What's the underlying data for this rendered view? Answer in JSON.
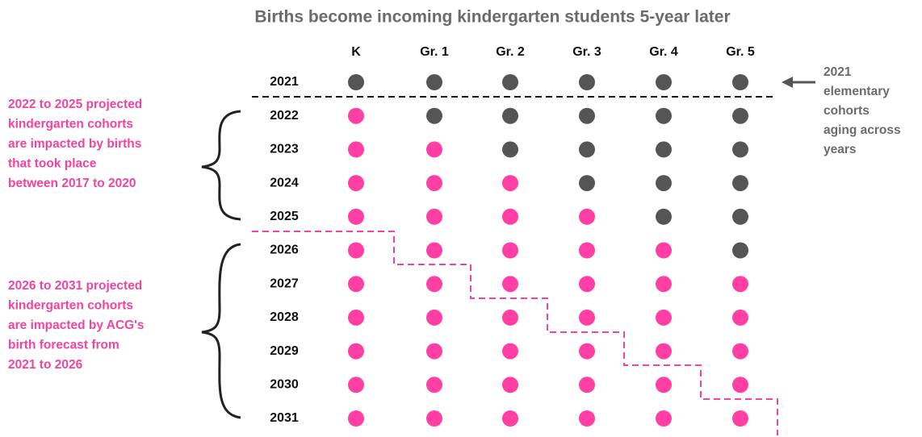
{
  "title": "Births become incoming kindergarten students 5-year later",
  "columns": [
    "K",
    "Gr. 1",
    "Gr. 2",
    "Gr. 3",
    "Gr. 4",
    "Gr. 5"
  ],
  "rows": [
    "2021",
    "2022",
    "2023",
    "2024",
    "2025",
    "2026",
    "2027",
    "2028",
    "2029",
    "2030",
    "2031"
  ],
  "left_notes": [
    {
      "lines": [
        "2022 to 2025 projected",
        "kindergarten cohorts",
        "are impacted by births",
        "that took place",
        "between 2017 to 2020"
      ]
    },
    {
      "lines": [
        "2026 to 2031 projected",
        "kindergarten cohorts",
        "are impacted by ACG's",
        "birth forecast from",
        "2021 to 2026"
      ]
    }
  ],
  "right_note": {
    "lines": [
      "2021",
      "elementary",
      "cohorts",
      "aging across",
      "years"
    ]
  }
}
